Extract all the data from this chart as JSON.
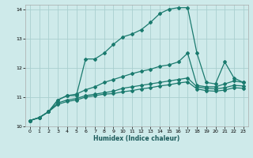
{
  "xlabel": "Humidex (Indice chaleur)",
  "background_color": "#ceeaea",
  "grid_color": "#aacfcf",
  "line_color": "#1a7a6e",
  "xlim": [
    -0.5,
    23.5
  ],
  "ylim": [
    10.0,
    14.15
  ],
  "yticks": [
    10,
    11,
    12,
    13,
    14
  ],
  "xticks": [
    0,
    1,
    2,
    3,
    4,
    5,
    6,
    7,
    8,
    9,
    10,
    11,
    12,
    13,
    14,
    15,
    16,
    17,
    18,
    19,
    20,
    21,
    22,
    23
  ],
  "series": [
    {
      "x": [
        0,
        1,
        2,
        3,
        4,
        5,
        6,
        7,
        8,
        9,
        10,
        11,
        12,
        13,
        14,
        15,
        16,
        17,
        18,
        19,
        20,
        21,
        22,
        23
      ],
      "y": [
        10.2,
        10.3,
        10.5,
        10.9,
        11.05,
        11.05,
        12.3,
        12.3,
        12.5,
        12.8,
        13.05,
        13.15,
        13.3,
        13.55,
        13.85,
        14.0,
        14.05,
        14.05,
        12.5,
        11.5,
        11.45,
        12.2,
        11.65,
        11.5
      ],
      "marker": "D",
      "markersize": 2.0,
      "linewidth": 0.9
    },
    {
      "x": [
        0,
        1,
        2,
        3,
        4,
        5,
        6,
        7,
        8,
        9,
        10,
        11,
        12,
        13,
        14,
        15,
        16,
        17,
        18,
        19,
        20,
        21,
        22,
        23
      ],
      "y": [
        10.2,
        10.3,
        10.5,
        10.9,
        11.05,
        11.1,
        11.25,
        11.35,
        11.5,
        11.6,
        11.7,
        11.8,
        11.88,
        11.95,
        12.05,
        12.1,
        12.2,
        12.5,
        11.4,
        11.35,
        11.35,
        11.45,
        11.55,
        11.5
      ],
      "marker": "D",
      "markersize": 2.0,
      "linewidth": 0.9
    },
    {
      "x": [
        0,
        1,
        2,
        3,
        4,
        5,
        6,
        7,
        8,
        9,
        10,
        11,
        12,
        13,
        14,
        15,
        16,
        17,
        18,
        19,
        20,
        21,
        22,
        23
      ],
      "y": [
        10.2,
        10.3,
        10.5,
        10.8,
        10.9,
        10.95,
        11.05,
        11.1,
        11.15,
        11.2,
        11.3,
        11.35,
        11.4,
        11.45,
        11.5,
        11.55,
        11.6,
        11.65,
        11.35,
        11.3,
        11.28,
        11.32,
        11.4,
        11.38
      ],
      "marker": "D",
      "markersize": 2.0,
      "linewidth": 0.9
    },
    {
      "x": [
        0,
        1,
        2,
        3,
        4,
        5,
        6,
        7,
        8,
        9,
        10,
        11,
        12,
        13,
        14,
        15,
        16,
        17,
        18,
        19,
        20,
        21,
        22,
        23
      ],
      "y": [
        10.2,
        10.3,
        10.5,
        10.75,
        10.85,
        10.9,
        11.0,
        11.05,
        11.1,
        11.12,
        11.18,
        11.22,
        11.28,
        11.32,
        11.38,
        11.42,
        11.48,
        11.52,
        11.28,
        11.22,
        11.2,
        11.24,
        11.32,
        11.3
      ],
      "marker": "D",
      "markersize": 2.0,
      "linewidth": 0.9
    }
  ]
}
